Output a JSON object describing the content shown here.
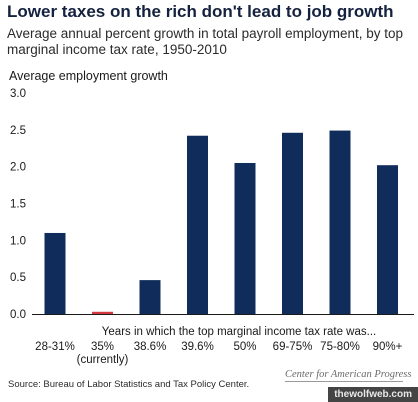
{
  "header": {
    "title": "Lower taxes on the rich don't lead to job growth",
    "subtitle": "Average annual percent growth in total payroll employment, by top marginal income tax rate, 1950-2010"
  },
  "footer": {
    "source": "Source: Bureau of Labor Statistics and Tax Policy Center.",
    "org": "Center for American Progress",
    "watermark": "thewolfweb.com"
  },
  "colors": {
    "bar": "#102c5a",
    "highlight_bar": "#d6383f",
    "axis": "#1a1a1a"
  },
  "chart_data": {
    "type": "bar",
    "title": "Lower taxes on the rich don't lead to job growth",
    "subtitle": "Average annual percent growth in total payroll employment, by top marginal income tax rate, 1950-2010",
    "ylabel": "Average employment growth",
    "xlabel": "Years in which the top marginal income tax rate was...",
    "ylim": [
      0,
      3.0
    ],
    "yticks": [
      "0.0",
      "0.5",
      "1.0",
      "1.5",
      "2.0",
      "2.5",
      "3.0"
    ],
    "grid": false,
    "categories": [
      [
        "28-31%"
      ],
      [
        "35%",
        "(currently)"
      ],
      [
        "38.6%"
      ],
      [
        "39.6%"
      ],
      [
        "50%"
      ],
      [
        "69-75%"
      ],
      [
        "75-80%"
      ],
      [
        "90%+"
      ]
    ],
    "values": [
      1.1,
      0.03,
      0.46,
      2.42,
      2.05,
      2.46,
      2.49,
      2.02
    ],
    "highlight_index": 1
  }
}
